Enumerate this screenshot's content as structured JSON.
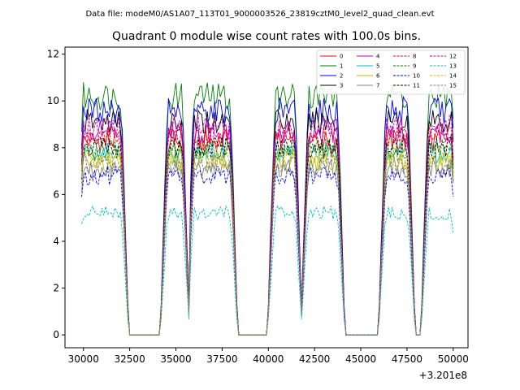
{
  "header": {
    "data_file": "Data file: modeM0/AS1A07_113T01_9000003526_23819cztM0_level2_quad_clean.evt"
  },
  "chart_data": {
    "type": "line",
    "title": "Quadrant 0 module wise count rates with 100.0s bins.",
    "xlabel": "",
    "ylabel": "",
    "x_offset_label": "+3.201e8",
    "xlim": [
      29000,
      50800
    ],
    "ylim": [
      -0.55,
      12.3
    ],
    "x_ticks": [
      30000,
      32500,
      35000,
      37500,
      40000,
      42500,
      45000,
      47500,
      50000
    ],
    "x_tick_labels": [
      "30000",
      "32500",
      "35000",
      "37500",
      "40000",
      "42500",
      "45000",
      "47500",
      "50000"
    ],
    "y_ticks": [
      0,
      2,
      4,
      6,
      8,
      10,
      12
    ],
    "y_tick_labels": [
      "0",
      "2",
      "4",
      "6",
      "8",
      "10",
      "12"
    ],
    "legend_position": "top-right",
    "x_start": 29900,
    "x_end": 50000,
    "bin_size": 100,
    "gti_segments": [
      {
        "start": 29900,
        "end": 32100
      },
      {
        "start": 34500,
        "end": 35400
      },
      {
        "start": 35900,
        "end": 38000
      },
      {
        "start": 40300,
        "end": 41500
      },
      {
        "start": 42100,
        "end": 43800
      },
      {
        "start": 46300,
        "end": 47600
      },
      {
        "start": 48600,
        "end": 50000
      }
    ],
    "series": [
      {
        "name": "0",
        "color": "#ff0000",
        "dash": "solid",
        "mean": 8.3
      },
      {
        "name": "1",
        "color": "#008000",
        "dash": "solid",
        "mean": 10.2
      },
      {
        "name": "2",
        "color": "#0000ff",
        "dash": "solid",
        "mean": 9.6
      },
      {
        "name": "3",
        "color": "#000000",
        "dash": "solid",
        "mean": 9.1
      },
      {
        "name": "4",
        "color": "#bf00bf",
        "dash": "solid",
        "mean": 8.7
      },
      {
        "name": "5",
        "color": "#00bfbf",
        "dash": "solid",
        "mean": 7.8
      },
      {
        "name": "6",
        "color": "#bfbf00",
        "dash": "solid",
        "mean": 7.4
      },
      {
        "name": "7",
        "color": "#808080",
        "dash": "solid",
        "mean": 7.1
      },
      {
        "name": "8",
        "color": "#ff0000",
        "dash": "dashed",
        "mean": 8.5
      },
      {
        "name": "9",
        "color": "#008000",
        "dash": "dashed",
        "mean": 7.9
      },
      {
        "name": "10",
        "color": "#0000ff",
        "dash": "dashed",
        "mean": 6.8
      },
      {
        "name": "11",
        "color": "#000000",
        "dash": "dashed",
        "mean": 8.0
      },
      {
        "name": "12",
        "color": "#bf00bf",
        "dash": "dashed",
        "mean": 8.9
      },
      {
        "name": "13",
        "color": "#00bfbf",
        "dash": "dashed",
        "mean": 5.2
      },
      {
        "name": "14",
        "color": "#bfbf00",
        "dash": "dashed",
        "mean": 7.6
      },
      {
        "name": "15",
        "color": "#808080",
        "dash": "dashed",
        "mean": 7.3
      }
    ]
  }
}
